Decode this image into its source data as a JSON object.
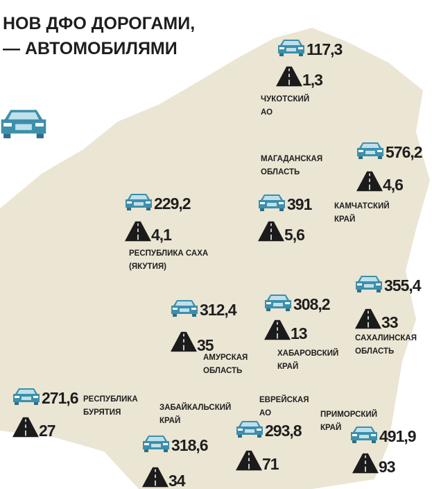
{
  "header": {
    "lines": [
      "НОВ ДФО ДОРОГАМИ,",
      "— АВТОМОБИЛЯМИ"
    ]
  },
  "regions": [
    {
      "name": [
        "ЧУКОТСКИЙ",
        "АО"
      ],
      "cars": "117,3",
      "roads": "1,3"
    },
    {
      "name": [
        "МАГАДАНСКАЯ",
        "ОБЛАСТЬ"
      ],
      "cars": "391",
      "roads": "5,6"
    },
    {
      "name": [
        "КАМЧАТСКИЙ",
        "КРАЙ"
      ],
      "cars": "576,2",
      "roads": "4,6"
    },
    {
      "name": [
        "РЕСПУБЛИКА САХА",
        "(ЯКУТИЯ)"
      ],
      "cars": "229,2",
      "roads": "4,1"
    },
    {
      "name": [
        "ХАБАРОВСКИЙ",
        "КРАЙ"
      ],
      "cars": "308,2",
      "roads": "13"
    },
    {
      "name": [
        "САХАЛИНСКАЯ",
        "ОБЛАСТЬ"
      ],
      "cars": "355,4",
      "roads": "33"
    },
    {
      "name": [
        "АМУРСКАЯ",
        "ОБЛАСТЬ"
      ],
      "cars": "312,4",
      "roads": "35"
    },
    {
      "name": [
        "РЕСПУБЛИКА",
        "БУРЯТИЯ"
      ],
      "cars": "271,6",
      "roads": "27"
    },
    {
      "name": [
        "ЗАБАЙКАЛЬСКИЙ",
        "КРАЙ"
      ],
      "cars": "318,6",
      "roads": "34"
    },
    {
      "name": [
        "ЕВРЕЙСКАЯ",
        "АО"
      ],
      "cars": "293,8",
      "roads": "71"
    },
    {
      "name": [
        "ПРИМОРСКИЙ",
        "КРАЙ"
      ],
      "cars": "491,9",
      "roads": "93"
    }
  ]
}
